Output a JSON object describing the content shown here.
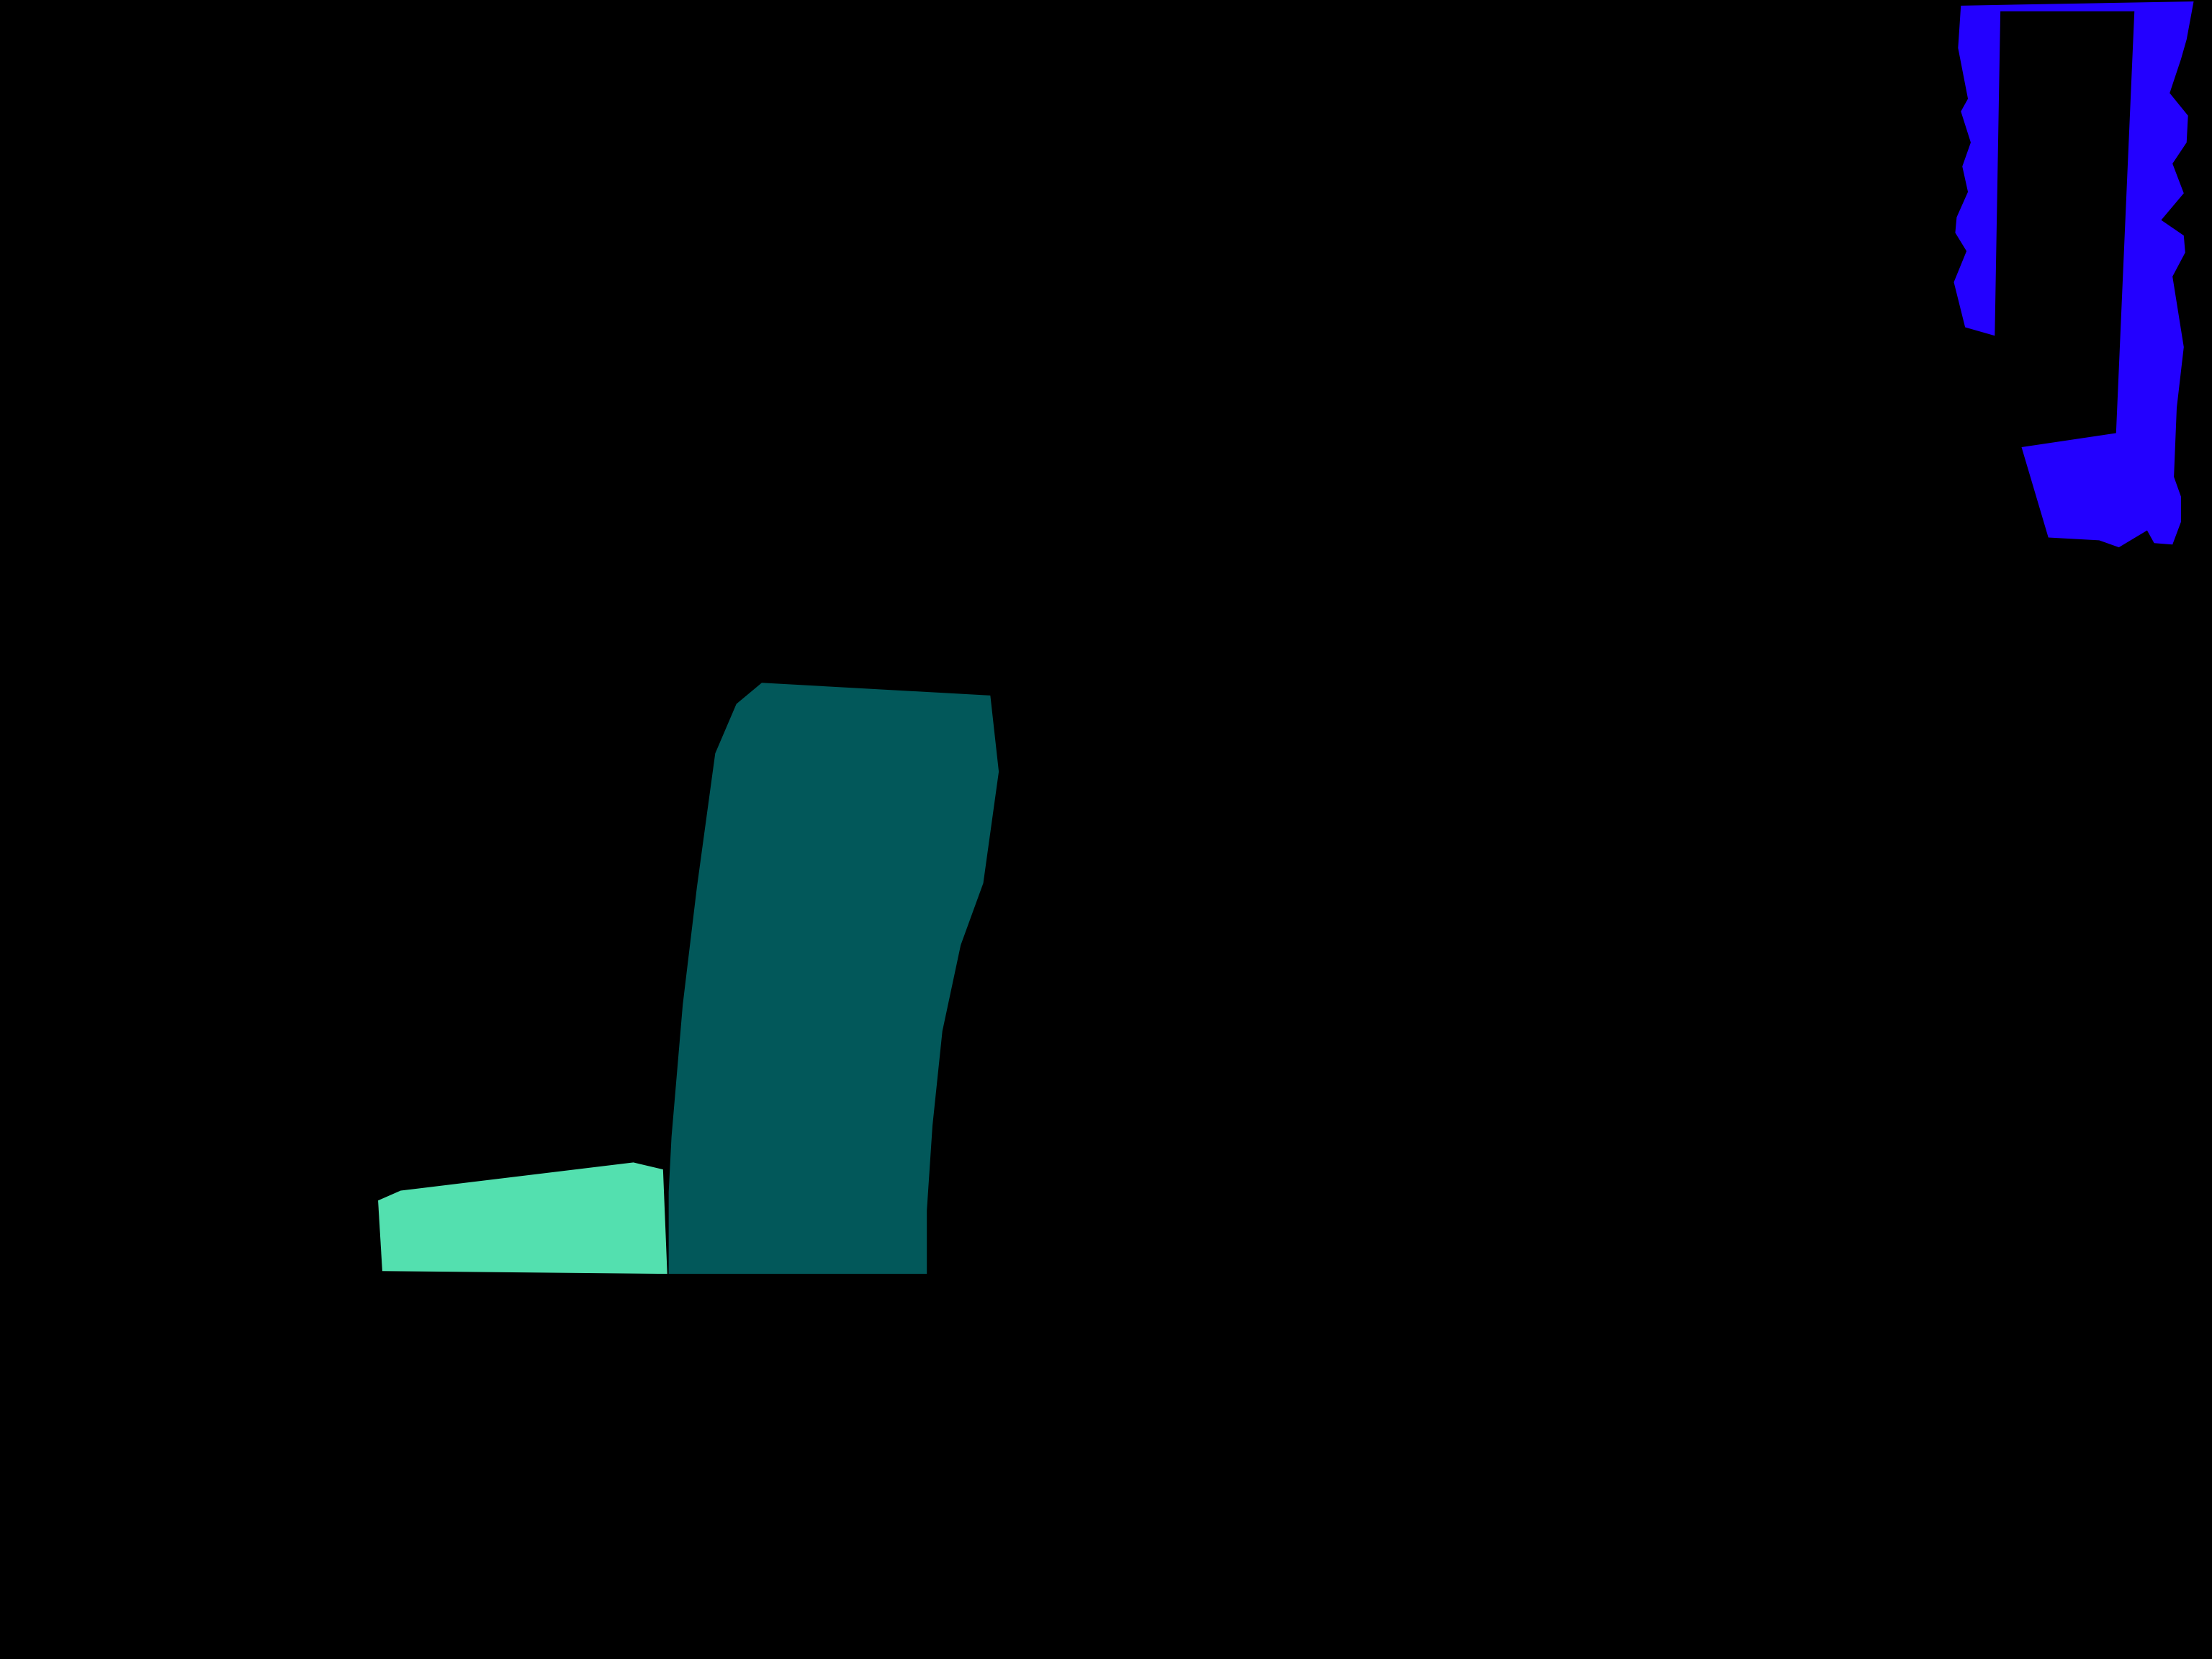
{
  "scene": {
    "background_color": "#000000",
    "regions": [
      {
        "name": "light-green-region",
        "color": "#53E0AF"
      },
      {
        "name": "dark-teal-region",
        "color": "#02585A"
      },
      {
        "name": "blue-region",
        "color": "#2300FF"
      }
    ]
  }
}
